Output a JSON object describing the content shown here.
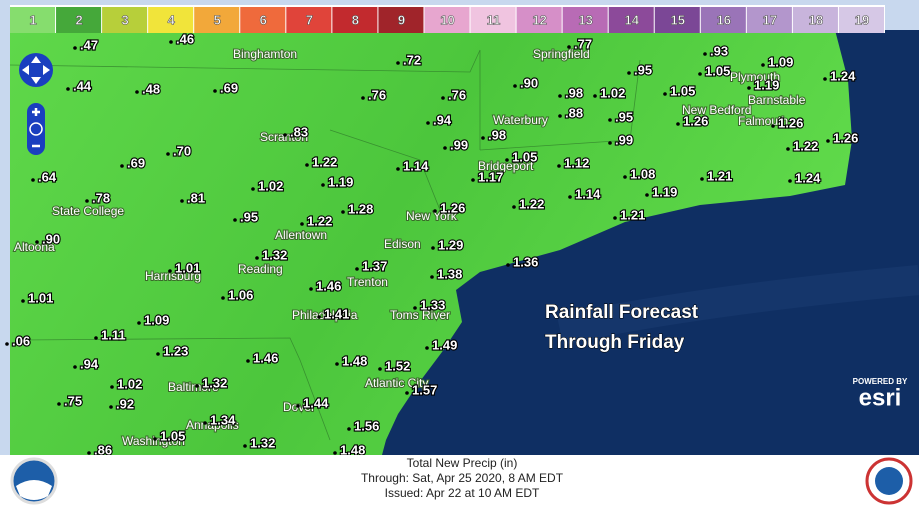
{
  "legend": {
    "values": [
      1,
      2,
      3,
      4,
      5,
      6,
      7,
      8,
      9,
      10,
      11,
      12,
      13,
      14,
      15,
      16,
      17,
      18,
      19
    ],
    "colors": [
      "#86dd6e",
      "#45a83a",
      "#b7cf3a",
      "#f1e43a",
      "#f2a83a",
      "#ef6a3c",
      "#e0443a",
      "#c22a2e",
      "#a0242a",
      "#e7a6cf",
      "#f0c4e0",
      "#d68fc8",
      "#b86bb5",
      "#8c4a9a",
      "#7b4796",
      "#9a74b8",
      "#b396cc",
      "#c8b4dc",
      "#d6c8e6"
    ]
  },
  "amounts": [
    ".47",
    ".46",
    ".72",
    ".77",
    ".93",
    "1.05",
    "1.09",
    "1.24",
    ".44",
    ".48",
    ".69",
    ".76",
    ".76",
    ".90",
    ".98",
    "1.02",
    ".95",
    "1.05",
    "1.19",
    "1.26",
    "1.26",
    ".88",
    ".95",
    ".94",
    ".98",
    ".99",
    ".99",
    "1.22",
    "1.26",
    ".83",
    ".70",
    ".69",
    "1.22",
    "1.14",
    "1.05",
    "1.12",
    "1.08",
    "1.19",
    "1.21",
    "1.24",
    ".64",
    "1.19",
    "1.02",
    "1.17",
    ".78",
    ".81",
    ".95",
    "1.22",
    "1.28",
    "1.26",
    "1.22",
    "1.14",
    "1.21",
    ".90",
    "1.29",
    "1.32",
    "1.01",
    "1.37",
    "1.38",
    "1.36",
    "1.06",
    "1.46",
    "1.01",
    "1.09",
    "1.41",
    "1.33",
    "1.11",
    ".06",
    "1.23",
    "1.46",
    "1.49",
    ".94",
    "1.48",
    "1.52",
    "1.02",
    "1.32",
    "1.57",
    ".75",
    ".92",
    "1.44",
    "1.34",
    "1.56",
    "1.05",
    "1.32",
    ".86",
    "1.48"
  ],
  "cities": [
    "Binghamton",
    "Springfield",
    "Plymouth",
    "Barnstable",
    "New Bedford",
    "Falmouth",
    "Waterbury",
    "Scranton",
    "Bridgeport",
    "State College",
    "New York",
    "Allentown",
    "Edison",
    "Altoona",
    "Harrisburg",
    "Reading",
    "Trenton",
    "Philadelphia",
    "Toms River",
    "Atlantic City",
    "Baltimore",
    "Dover",
    "Annapolis",
    "Washington"
  ],
  "overlay": {
    "line1": "Rainfall Forecast",
    "line2": "Through Friday"
  },
  "footer": {
    "title": "Total New Precip (in)",
    "through": "Through: Sat, Apr 25 2020,   8 AM EDT",
    "issued": "Issued: Apr 22 at 10 AM EDT"
  },
  "esri": {
    "powered": "POWERED BY",
    "name": "esri"
  }
}
